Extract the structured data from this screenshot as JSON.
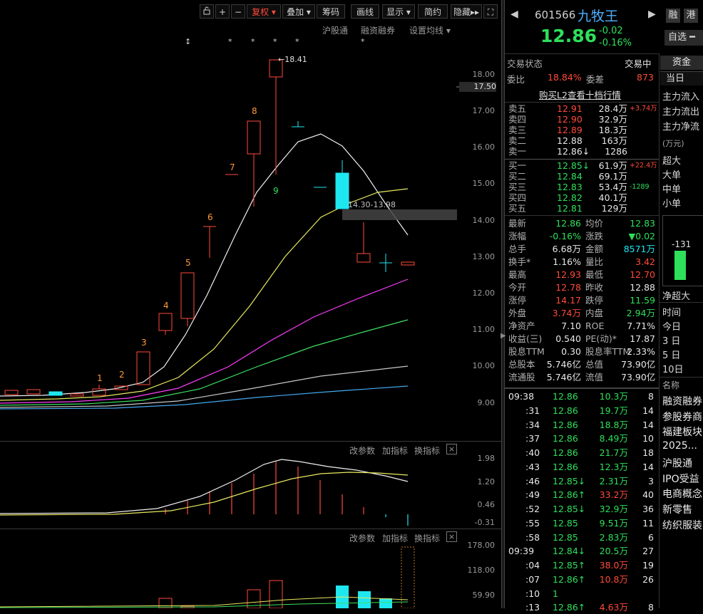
{
  "toolbar": {
    "lock_icon": "lock-icon",
    "zoom_in": "+",
    "zoom_out": "−",
    "fuquan": "复权",
    "diejia": "叠加",
    "chouma": "筹码",
    "huaxian": "画线",
    "xianshi": "显示",
    "jianyue": "简约",
    "yincang": "隐藏",
    "fullscreen_icon": "fullscreen-icon"
  },
  "chart_header": {
    "hgt": "沪股通",
    "rzrq": "融资融券",
    "ma_setting": "设置均线"
  },
  "stars": [
    "↕",
    "*",
    "*",
    "*",
    "*",
    "*"
  ],
  "price_axis": [
    "18.00",
    "17.50",
    "17.00",
    "16.00",
    "15.00",
    "14.00",
    "13.00",
    "12.00",
    "11.00",
    "10.00",
    "9.00"
  ],
  "chart_annotations": {
    "high_label": "18.41",
    "range_label": "14.30-13.98",
    "wave_nums": [
      "1",
      "2",
      "3",
      "4",
      "5",
      "6",
      "7",
      "8",
      "9"
    ]
  },
  "sub1": {
    "gaicanshu": "改参数",
    "jiazhibiao": "加指标",
    "huanzhibiao": "换指标",
    "close": "×",
    "axis": [
      "1.98",
      "1.20",
      "0.46",
      "-0.31"
    ]
  },
  "sub2": {
    "gaicanshu": "改参数",
    "jiazhibiao": "加指标",
    "huanzhibiao": "换指标",
    "close": "×",
    "axis": [
      "178.00",
      "118.00",
      "59.90"
    ]
  },
  "stock": {
    "code": "601566",
    "name": "九牧王",
    "price": "12.86",
    "change": "-0.02",
    "change_pct": "-0.16%",
    "rong": "融",
    "gang": "港",
    "zixuan": "自选"
  },
  "status": {
    "label": "交易状态",
    "value": "交易中",
    "weibi_label": "委比",
    "weibi": "18.84%",
    "weicha_label": "委差",
    "weicha": "873",
    "l2_link": "购买L2查看十档行情"
  },
  "asks": [
    {
      "label": "卖五",
      "price": "12.91",
      "vol": "28.4万",
      "extra": "+3.74万"
    },
    {
      "label": "卖四",
      "price": "12.90",
      "vol": "32.9万",
      "extra": ""
    },
    {
      "label": "卖三",
      "price": "12.89",
      "vol": "18.3万",
      "extra": ""
    },
    {
      "label": "卖二",
      "price": "12.88",
      "vol": "163万",
      "extra": ""
    },
    {
      "label": "卖一",
      "price": "12.86↓",
      "vol": "1286",
      "extra": ""
    }
  ],
  "bids": [
    {
      "label": "买一",
      "price": "12.85↓",
      "vol": "61.9万",
      "extra": "+22.4万"
    },
    {
      "label": "买二",
      "price": "12.84",
      "vol": "69.1万",
      "extra": ""
    },
    {
      "label": "买三",
      "price": "12.83",
      "vol": "53.4万",
      "extra": "-1289"
    },
    {
      "label": "买四",
      "price": "12.82",
      "vol": "40.1万",
      "extra": ""
    },
    {
      "label": "买五",
      "price": "12.81",
      "vol": "129万",
      "extra": ""
    }
  ],
  "quote": [
    {
      "l1": "最新",
      "v1": "12.86",
      "l2": "均价",
      "v2": "12.83"
    },
    {
      "l1": "涨幅",
      "v1": "-0.16%",
      "l2": "涨跌",
      "v2": "▼0.02"
    },
    {
      "l1": "总手",
      "v1": "6.68万",
      "l2": "金额",
      "v2": "8571万"
    },
    {
      "l1": "换手*",
      "v1": "1.16%",
      "l2": "量比",
      "v2": "3.42"
    },
    {
      "l1": "最高",
      "v1": "12.93",
      "l2": "最低",
      "v2": "12.70"
    },
    {
      "l1": "今开",
      "v1": "12.78",
      "l2": "昨收",
      "v2": "12.88"
    },
    {
      "l1": "涨停",
      "v1": "14.17",
      "l2": "跌停",
      "v2": "11.59"
    },
    {
      "l1": "外盘",
      "v1": "3.74万",
      "l2": "内盘",
      "v2": "2.94万"
    },
    {
      "l1": "净资产",
      "v1": "7.10",
      "l2": "ROE",
      "v2": "7.71%"
    },
    {
      "l1": "收益(三)",
      "v1": "0.540",
      "l2": "PE(动)*",
      "v2": "17.87"
    },
    {
      "l1": "股息TTM",
      "v1": "0.30",
      "l2": "股息率TTM",
      "v2": "2.33%"
    },
    {
      "l1": "总股本",
      "v1": "5.746亿",
      "l2": "总值",
      "v2": "73.90亿"
    },
    {
      "l1": "流通股",
      "v1": "5.746亿",
      "l2": "流值",
      "v2": "73.90亿"
    }
  ],
  "ticks": [
    {
      "t": "09:38",
      "p": "12.86",
      "v": "10.3万",
      "n": "8"
    },
    {
      "t": ":31",
      "p": "12.86",
      "v": "19.7万",
      "n": "14"
    },
    {
      "t": ":34",
      "p": "12.86",
      "v": "18.8万",
      "n": "14"
    },
    {
      "t": ":37",
      "p": "12.86",
      "v": "8.49万",
      "n": "10"
    },
    {
      "t": ":40",
      "p": "12.86",
      "v": "21.7万",
      "n": "18"
    },
    {
      "t": ":43",
      "p": "12.86",
      "v": "12.3万",
      "n": "14"
    },
    {
      "t": ":46",
      "p": "12.85↓",
      "v": "2.31万",
      "n": "3"
    },
    {
      "t": ":49",
      "p": "12.86↑",
      "v": "33.2万",
      "n": "40"
    },
    {
      "t": ":52",
      "p": "12.85↓",
      "v": "32.9万",
      "n": "36"
    },
    {
      "t": ":55",
      "p": "12.85",
      "v": "9.51万",
      "n": "11"
    },
    {
      "t": ":58",
      "p": "12.85",
      "v": "2.83万",
      "n": "6"
    },
    {
      "t": "09:39",
      "p": "12.84↓",
      "v": "20.5万",
      "n": "27"
    },
    {
      "t": ":04",
      "p": "12.85↑",
      "v": "38.0万",
      "n": "19"
    },
    {
      "t": ":07",
      "p": "12.86↑",
      "v": "10.8万",
      "n": "26"
    },
    {
      "t": ":10",
      "p": "1",
      "v": "",
      "n": ""
    },
    {
      "t": ":13",
      "p": "12.86↑",
      "v": "4.63万",
      "n": "8"
    }
  ],
  "fund": {
    "tab_zijin": "资金",
    "tab_dangri": "当日",
    "zhuli_in": "主力流入",
    "zhuli_out": "主力流出",
    "zhuli_net": "主力净流",
    "unit": "(万元)",
    "chaoda": "超大",
    "da": "大单",
    "zhong": "中单",
    "xiao": "小单",
    "bar_value": "-131",
    "net_chaoda": "净超大",
    "time_label": "时间",
    "periods": [
      "今日",
      "3 日",
      "5 日",
      "10日"
    ],
    "name_label": "名称",
    "concepts": [
      "融资融券",
      "参股券商",
      "福建板块",
      "2025...",
      "沪股通",
      "IPO受益",
      "电商概念",
      "新零售",
      "纺织服装"
    ]
  },
  "colors": {
    "up": "#ff4a3a",
    "down": "#1ee7f0",
    "green": "#2ee05a",
    "bg": "#000000"
  }
}
